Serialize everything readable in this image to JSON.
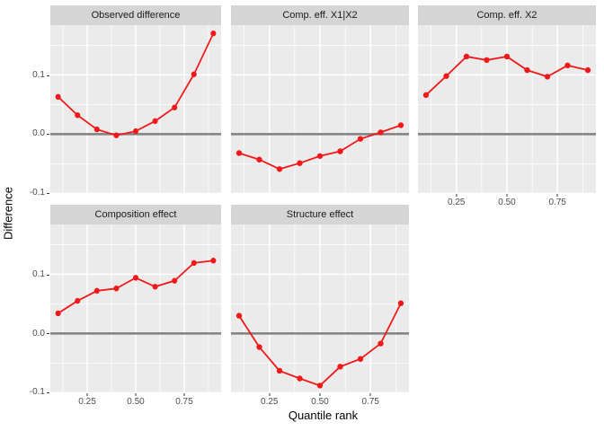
{
  "figure": {
    "y_axis_title": "Difference",
    "x_axis_title": "Quantile rank",
    "y_ticks": [
      "0.1",
      "0.0",
      "-0.1"
    ],
    "x_ticks": [
      "0.25",
      "0.50",
      "0.75"
    ]
  },
  "chart_data": {
    "type": "line",
    "title": "",
    "xlabel": "Quantile rank",
    "ylabel": "Difference",
    "x": [
      0.1,
      0.2,
      0.3,
      0.4,
      0.5,
      0.6,
      0.7,
      0.8,
      0.9
    ],
    "panels": [
      {
        "title": "Observed difference",
        "values": [
          0.063,
          0.032,
          0.008,
          -0.002,
          0.005,
          0.022,
          0.045,
          0.101,
          0.17
        ]
      },
      {
        "title": "Comp. eff. X1|X2",
        "values": [
          -0.032,
          -0.043,
          -0.059,
          -0.049,
          -0.037,
          -0.029,
          -0.008,
          0.003,
          0.015
        ]
      },
      {
        "title": "Comp. eff. X2",
        "values": [
          0.066,
          0.098,
          0.131,
          0.125,
          0.131,
          0.108,
          0.097,
          0.116,
          0.108
        ]
      },
      {
        "title": "Composition effect",
        "values": [
          0.034,
          0.055,
          0.072,
          0.076,
          0.094,
          0.079,
          0.089,
          0.119,
          0.123
        ]
      },
      {
        "title": "Structure effect",
        "values": [
          0.03,
          -0.023,
          -0.063,
          -0.076,
          -0.088,
          -0.056,
          -0.043,
          -0.017,
          0.051
        ]
      }
    ],
    "xlim": [
      0.06,
      0.94
    ],
    "ylim": [
      -0.101,
      0.184
    ],
    "x_tick_values": [
      0.25,
      0.5,
      0.75
    ],
    "y_tick_values": [
      -0.1,
      0.0,
      0.1
    ],
    "x_minor_ticks": [
      0.125,
      0.375,
      0.625,
      0.875
    ],
    "y_minor_ticks": [
      -0.05,
      0.05,
      0.15
    ],
    "zero_reference_line": 0.0,
    "grid": "on",
    "legend": "none",
    "colors": {
      "line": "#f01818",
      "point": "#f01818",
      "zero_line": "#808080",
      "panel_background": "#ebebeb",
      "strip_background": "#d5d5d5",
      "gridline": "#ffffff",
      "tick_text": "#4d4d4d",
      "title_text": "#1a1a1a"
    }
  }
}
